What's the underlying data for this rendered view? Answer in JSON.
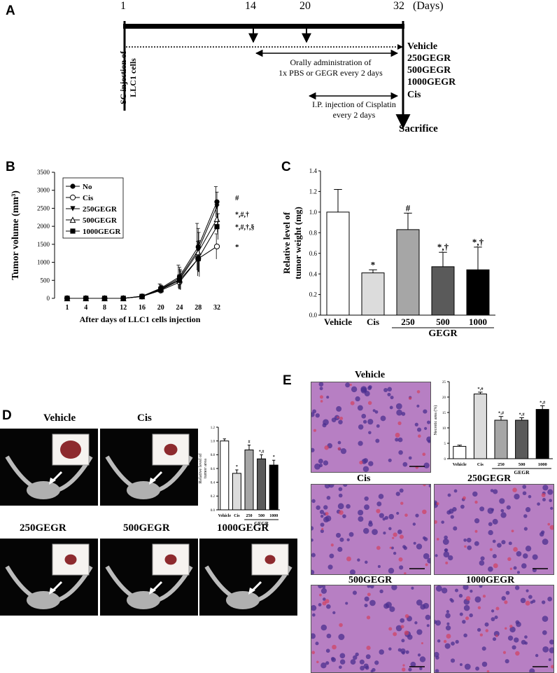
{
  "panels": {
    "a": "A",
    "b": "B",
    "c": "C",
    "d": "D",
    "e": "E"
  },
  "timeline": {
    "days": [
      "1",
      "14",
      "20",
      "32"
    ],
    "days_unit": "(Days)",
    "left_label_1": "SC injection of",
    "left_label_2": "LLC1 cells",
    "oral_1": "Orally administration of",
    "oral_2": "1x PBS or GEGR every 2 days",
    "ip_1": "I.P. injection of Cisplatin",
    "ip_2": "every 2 days",
    "groups": [
      "Vehicle",
      "250GEGR",
      "500GEGR",
      "1000GEGR"
    ],
    "cis": "Cis",
    "sacrifice": "Sacrifice"
  },
  "chart_data": [
    {
      "id": "B",
      "type": "line",
      "ylabel": "Tumor volume (mm³)",
      "xlabel": "After days of LLC1 cells injection",
      "x": [
        1,
        4,
        8,
        12,
        16,
        20,
        24,
        28,
        32
      ],
      "ylim": [
        0,
        3500
      ],
      "yticks": [
        0,
        500,
        1000,
        1500,
        2000,
        2500,
        3000,
        3500
      ],
      "legend_position": "top-left",
      "series": [
        {
          "name": "No",
          "marker": "filled-circle",
          "values": [
            0,
            0,
            0,
            0,
            60,
            280,
            600,
            1430,
            2680
          ],
          "err": [
            0,
            0,
            0,
            0,
            20,
            120,
            320,
            650,
            420
          ]
        },
        {
          "name": "Cis",
          "marker": "open-circle",
          "values": [
            0,
            0,
            0,
            0,
            50,
            220,
            450,
            1100,
            1440
          ],
          "err": [
            0,
            0,
            0,
            0,
            20,
            90,
            200,
            480,
            350
          ]
        },
        {
          "name": "250GEGR",
          "marker": "filled-triangle-down",
          "values": [
            0,
            0,
            0,
            0,
            55,
            260,
            560,
            1340,
            2550
          ],
          "err": [
            0,
            0,
            0,
            0,
            20,
            110,
            300,
            600,
            400
          ]
        },
        {
          "name": "500GEGR",
          "marker": "open-triangle",
          "values": [
            0,
            0,
            0,
            0,
            55,
            250,
            520,
            1280,
            2200
          ],
          "err": [
            0,
            0,
            0,
            0,
            20,
            100,
            280,
            550,
            380
          ]
        },
        {
          "name": "1000GEGR",
          "marker": "filled-square",
          "values": [
            0,
            0,
            0,
            0,
            52,
            240,
            500,
            1100,
            1990
          ],
          "err": [
            0,
            0,
            0,
            0,
            20,
            100,
            260,
            500,
            360
          ]
        }
      ],
      "annotations": [
        "#",
        "*,#,†",
        "*,#,†,§",
        "*"
      ]
    },
    {
      "id": "C",
      "type": "bar",
      "ylabel_1": "Relative level of",
      "ylabel_2": "tumor weight (mg)",
      "categories": [
        "Vehicle",
        "Cis",
        "250",
        "500",
        "1000"
      ],
      "group_label": "GEGR",
      "values": [
        1.0,
        0.41,
        0.83,
        0.47,
        0.44
      ],
      "err": [
        0.22,
        0.03,
        0.16,
        0.14,
        0.22
      ],
      "colors": [
        "#ffffff",
        "#dcdcdc",
        "#a6a6a6",
        "#5a5a5a",
        "#000000"
      ],
      "annotations": [
        "",
        "*",
        "#",
        "*,†",
        "*,†"
      ],
      "ylim": [
        0,
        1.4
      ],
      "yticks": [
        "0.0",
        "0.2",
        "0.4",
        "0.6",
        "0.8",
        "1.0",
        "1.2",
        "1.4"
      ]
    },
    {
      "id": "D-inset",
      "type": "bar",
      "ylabel_1": "Relative level of",
      "ylabel_2": "tumor area",
      "categories": [
        "Vehicle",
        "Cis",
        "250",
        "500",
        "1000"
      ],
      "group_label": "GEGR",
      "values": [
        1.0,
        0.53,
        0.87,
        0.74,
        0.65
      ],
      "err": [
        0.03,
        0.05,
        0.07,
        0.06,
        0.07
      ],
      "colors": [
        "#ffffff",
        "#dcdcdc",
        "#a6a6a6",
        "#5a5a5a",
        "#000000"
      ],
      "annotations": [
        "",
        "*",
        "#",
        "*,#",
        "*"
      ],
      "ylim": [
        0,
        1.2
      ],
      "yticks": [
        "0.0",
        "0.2",
        "0.4",
        "0.6",
        "0.8",
        "1.0",
        "1.2"
      ]
    },
    {
      "id": "E-inset",
      "type": "bar",
      "ylabel": "Necrotic area (%)",
      "categories": [
        "Vehicle",
        "Cis",
        "250",
        "500",
        "1000"
      ],
      "group_label": "GEGR",
      "values": [
        4,
        21,
        12.5,
        12.5,
        16
      ],
      "err": [
        0.4,
        0.6,
        1.2,
        0.8,
        1.2
      ],
      "colors": [
        "#ffffff",
        "#dcdcdc",
        "#a6a6a6",
        "#5a5a5a",
        "#000000"
      ],
      "annotations": [
        "",
        "*,#",
        "*,#",
        "*,#",
        "*,#"
      ],
      "ylim": [
        0,
        25
      ],
      "yticks": [
        "0",
        "5",
        "10",
        "15",
        "20",
        "25"
      ]
    }
  ],
  "ct_labels": [
    "Vehicle",
    "Cis",
    "250GEGR",
    "500GEGR",
    "1000GEGR"
  ],
  "histo_labels": [
    "Vehicle",
    "Cis",
    "250GEGR",
    "500GEGR",
    "1000GEGR"
  ]
}
